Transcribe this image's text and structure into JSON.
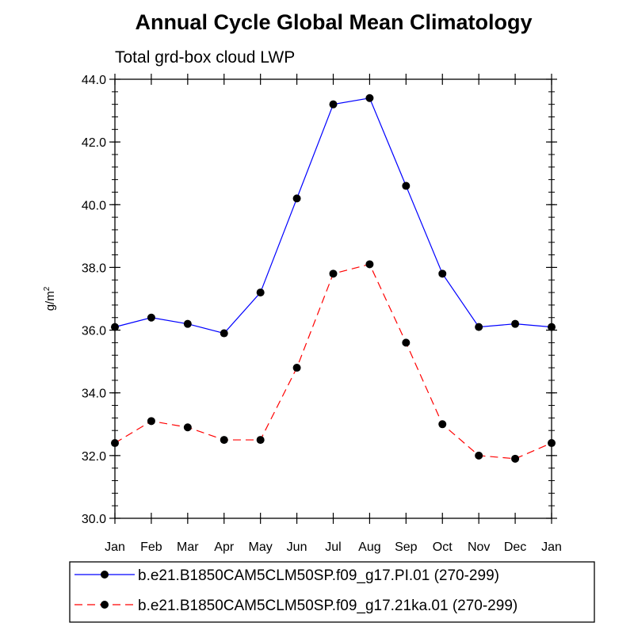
{
  "chart_data": {
    "type": "line",
    "title": "Annual Cycle Global Mean Climatology",
    "subtitle": "Total grd-box cloud LWP",
    "xlabel": "",
    "ylabel": "g/m",
    "ylabel_superscript": "2",
    "categories": [
      "Jan",
      "Feb",
      "Mar",
      "Apr",
      "May",
      "Jun",
      "Jul",
      "Aug",
      "Sep",
      "Oct",
      "Nov",
      "Dec",
      "Jan"
    ],
    "ylim": [
      30.0,
      44.0
    ],
    "yticks": [
      "30.0",
      "32.0",
      "34.0",
      "36.0",
      "38.0",
      "40.0",
      "42.0",
      "44.0"
    ],
    "series": [
      {
        "name": "b.e21.B1850CAM5CLM50SP.f09_g17.PI.01 (270-299)",
        "color": "#0000ff",
        "dash": "solid",
        "values": [
          36.1,
          36.4,
          36.2,
          35.9,
          37.2,
          40.2,
          43.2,
          43.4,
          40.6,
          37.8,
          36.1,
          36.2,
          36.1
        ]
      },
      {
        "name": "b.e21.B1850CAM5CLM50SP.f09_g17.21ka.01 (270-299)",
        "color": "#ff0000",
        "dash": "dashed",
        "values": [
          32.4,
          33.1,
          32.9,
          32.5,
          32.5,
          34.8,
          37.8,
          38.1,
          35.6,
          33.0,
          32.0,
          31.9,
          32.4
        ]
      }
    ],
    "legend_position": "bottom"
  }
}
